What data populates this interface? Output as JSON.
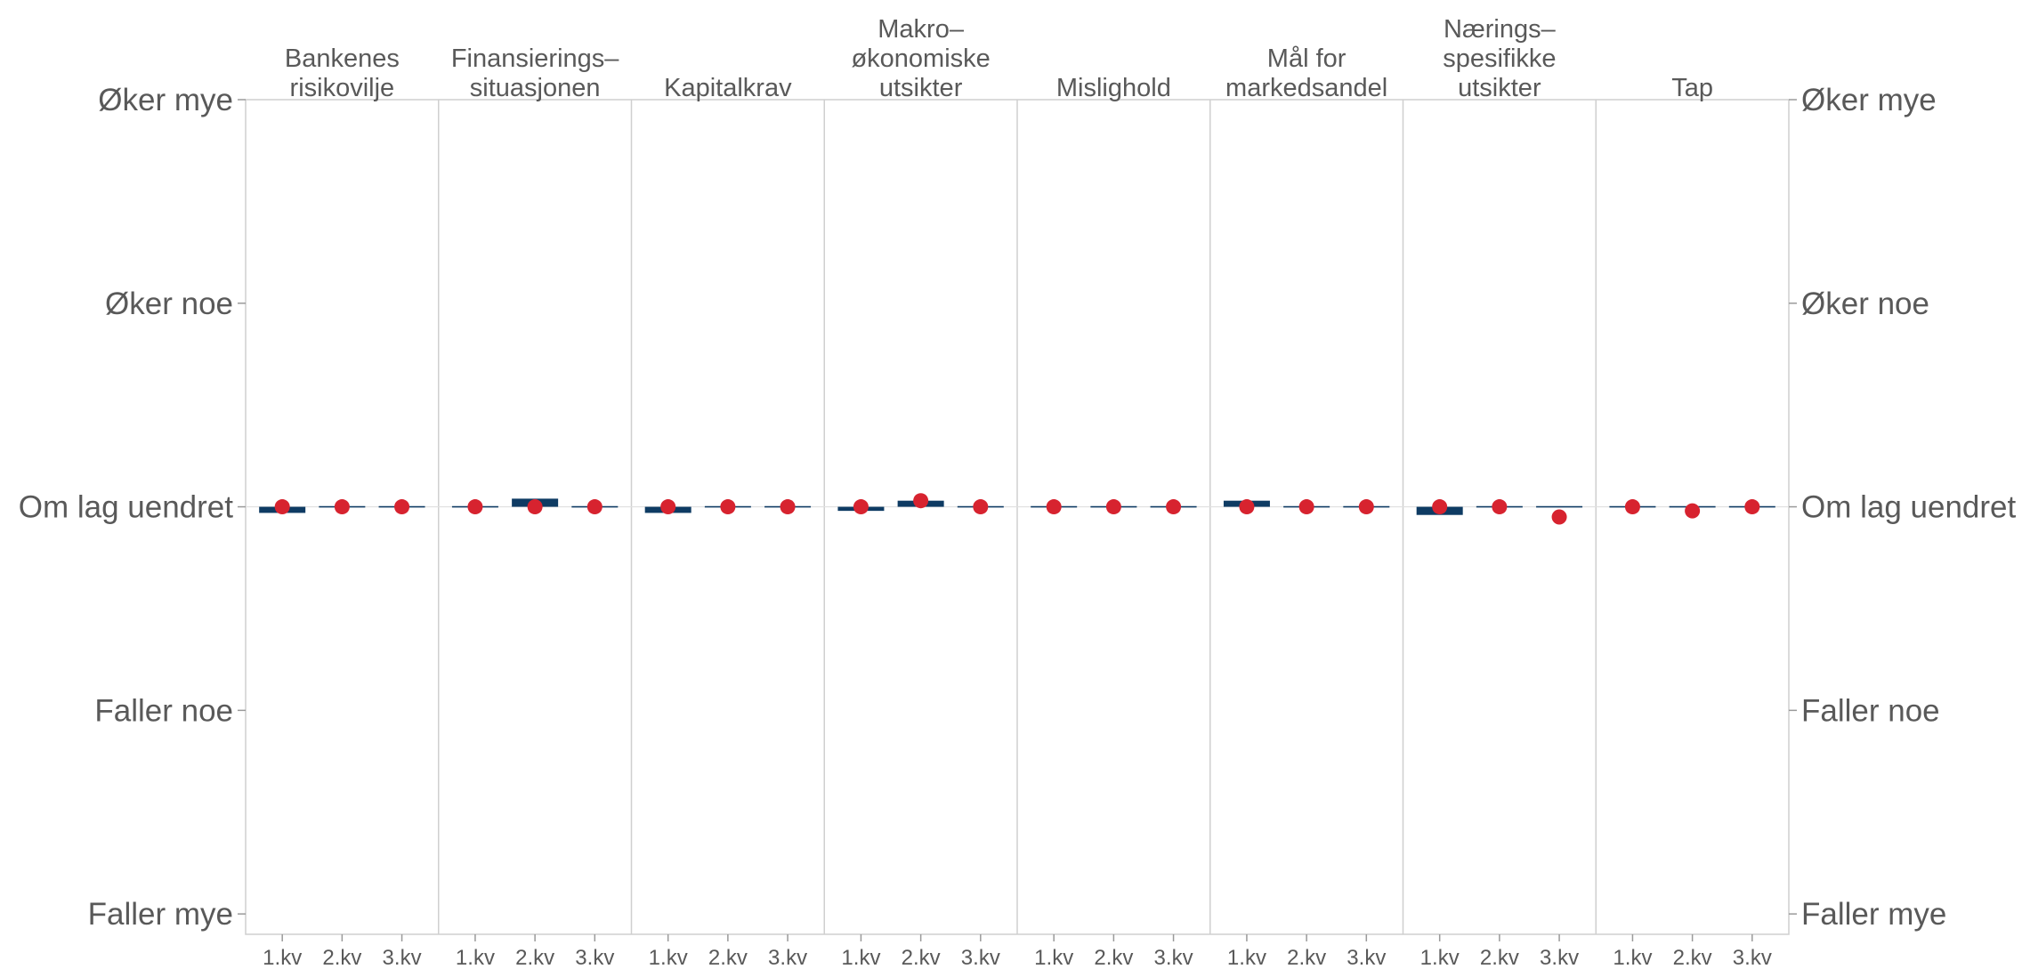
{
  "chart_data": {
    "type": "bar",
    "categories": [
      "1.kv",
      "2.kv",
      "3.kv"
    ],
    "panels": [
      {
        "title": "Bankenes\nrisikovilje",
        "bars": [
          -0.03,
          0.0,
          0.0
        ],
        "points": [
          0.0,
          0.0,
          0.0
        ]
      },
      {
        "title": "Finansierings–\nsituasjonen",
        "bars": [
          0.0,
          0.04,
          0.0
        ],
        "points": [
          0.0,
          0.0,
          0.0
        ]
      },
      {
        "title": "Kapitalkrav",
        "bars": [
          -0.03,
          0.0,
          0.0
        ],
        "points": [
          0.0,
          0.0,
          0.0
        ]
      },
      {
        "title": "Makro–\nøkonomiske\nutsikter",
        "bars": [
          -0.02,
          0.03,
          0.0
        ],
        "points": [
          0.0,
          0.03,
          0.0
        ]
      },
      {
        "title": "Mislighold",
        "bars": [
          0.0,
          0.0,
          0.0
        ],
        "points": [
          0.0,
          0.0,
          0.0
        ]
      },
      {
        "title": "Mål for\nmarkedsandel",
        "bars": [
          0.03,
          0.0,
          0.0
        ],
        "points": [
          0.0,
          0.0,
          0.0
        ]
      },
      {
        "title": "Nærings–\nspesifikke\nutsikter",
        "bars": [
          -0.04,
          0.0,
          0.0
        ],
        "points": [
          0.0,
          0.0,
          -0.05
        ]
      },
      {
        "title": "Tap",
        "bars": [
          0.0,
          0.0,
          0.0
        ],
        "points": [
          0.0,
          -0.02,
          0.0
        ]
      }
    ],
    "ylim": [
      -2.1,
      2.0
    ],
    "yticks": [
      {
        "value": 2,
        "label": "Øker mye"
      },
      {
        "value": 1,
        "label": "Øker noe"
      },
      {
        "value": 0,
        "label": "Om lag uendret"
      },
      {
        "value": -1,
        "label": "Faller noe"
      },
      {
        "value": -2,
        "label": "Faller mye"
      }
    ],
    "colors": {
      "bar": "#0e3b63",
      "point": "#d7232f",
      "axis": "#cfcfcf",
      "text": "#595959",
      "zero_line": "#e0e0e0"
    }
  }
}
